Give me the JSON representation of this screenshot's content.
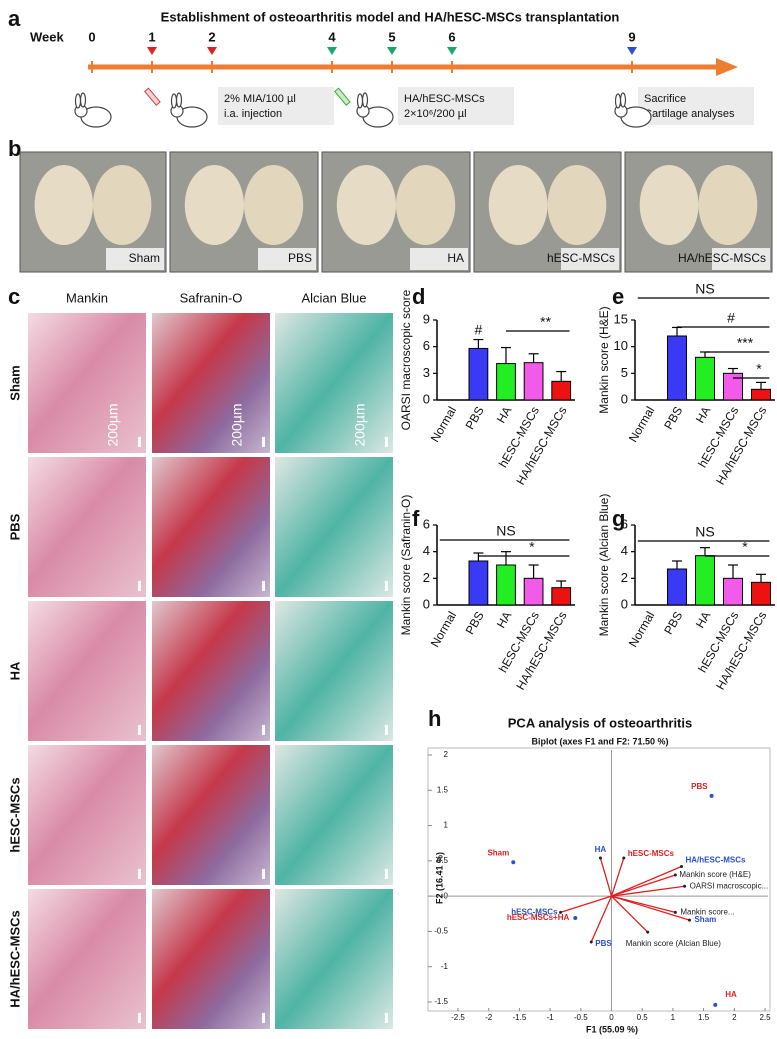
{
  "panel_labels": [
    "a",
    "b",
    "c",
    "d",
    "e",
    "f",
    "g",
    "h"
  ],
  "timeline": {
    "title": "Establishment of osteoarthritis model and HA/hESC-MSCs transplantation",
    "axis_label": "Week",
    "weeks": [
      0,
      1,
      2,
      4,
      5,
      6,
      9
    ],
    "marker_colors": [
      null,
      "#e02020",
      "#e02020",
      "#1aa86a",
      "#1aa86a",
      "#1aa86a",
      "#2a4fd0"
    ],
    "color": "#ed7d31",
    "notes": [
      {
        "week": 2,
        "lines": [
          "2% MIA/100 µl",
          "i.a. injection"
        ]
      },
      {
        "week": 5,
        "lines": [
          "HA/hESC-MSCs",
          "2×10⁶/200 µl"
        ]
      },
      {
        "week": 9,
        "lines": [
          "Sacrifice",
          "Cartilage analyses"
        ]
      }
    ]
  },
  "photos": {
    "labels": [
      "Sham",
      "PBS",
      "HA",
      "hESC-MSCs",
      "HA/hESC-MSCs"
    ]
  },
  "histology": {
    "columns": [
      "Mankin",
      "Safranin-O",
      "Alcian Blue"
    ],
    "rows": [
      "Sham",
      "PBS",
      "HA",
      "hESC-MSCs",
      "HA/hESC-MSCs"
    ],
    "scale_bar": "200µm"
  },
  "chart_data": [
    {
      "type": "bar",
      "ylabel": "OARSI macroscopic score",
      "categories": [
        "Normal",
        "PBS",
        "HA",
        "hESC-MSCs",
        "HA/hESC-MSCs"
      ],
      "values": [
        0,
        5.8,
        4.1,
        4.2,
        2.1
      ],
      "errors": [
        null,
        1.0,
        1.8,
        1.0,
        1.1
      ],
      "colors": [
        "#000000",
        "#3a3af5",
        "#22ee22",
        "#f25bea",
        "#ee1111"
      ],
      "ylim": [
        0,
        9
      ],
      "yticks": [
        0,
        3,
        6,
        9
      ],
      "annotations": [
        "#",
        "**"
      ]
    },
    {
      "type": "bar",
      "ylabel": "Mankin score (H&E)",
      "categories": [
        "Normal",
        "PBS",
        "HA",
        "hESC-MSCs",
        "HA/hESC-MSCs"
      ],
      "values": [
        0,
        12,
        8,
        5,
        2
      ],
      "errors": [
        null,
        1.6,
        1.0,
        0.9,
        1.3
      ],
      "colors": [
        "#000000",
        "#3a3af5",
        "#22ee22",
        "#f25bea",
        "#ee1111"
      ],
      "ylim": [
        0,
        15
      ],
      "yticks": [
        0,
        5,
        10,
        15
      ],
      "annotations": [
        "NS",
        "#",
        "***",
        "*"
      ]
    },
    {
      "type": "bar",
      "ylabel": "Mankin score (Safranin-O)",
      "categories": [
        "Normal",
        "PBS",
        "HA",
        "hESC-MSCs",
        "HA/hESC-MSCs"
      ],
      "values": [
        0,
        3.3,
        3.0,
        2.0,
        1.3
      ],
      "errors": [
        null,
        0.6,
        1.0,
        1.0,
        0.5
      ],
      "colors": [
        "#000000",
        "#3a3af5",
        "#22ee22",
        "#f25bea",
        "#ee1111"
      ],
      "ylim": [
        0,
        6
      ],
      "yticks": [
        0,
        2,
        4,
        6
      ],
      "annotations": [
        "NS",
        "*"
      ]
    },
    {
      "type": "bar",
      "ylabel": "Mankin score (Alcian Blue)",
      "categories": [
        "Normal",
        "PBS",
        "HA",
        "hESC-MSCs",
        "HA/hESC-MSCs"
      ],
      "values": [
        0,
        2.7,
        3.7,
        2.0,
        1.7
      ],
      "errors": [
        null,
        0.6,
        0.6,
        1.0,
        0.6
      ],
      "colors": [
        "#000000",
        "#3a3af5",
        "#22ee22",
        "#f25bea",
        "#ee1111"
      ],
      "ylim": [
        0,
        6
      ],
      "yticks": [
        0,
        2,
        4,
        6
      ],
      "annotations": [
        "NS",
        "*"
      ]
    },
    {
      "type": "scatter",
      "title": "PCA analysis of osteoarthritis",
      "subtitle": "Biplot (axes F1 and F2: 71.50 %)",
      "xlabel": "F1 (55.09 %)",
      "ylabel": "F2 (16.41 %)",
      "xlim": [
        -2.5,
        2.5
      ],
      "ylim": [
        -1.5,
        2
      ],
      "xticks": [
        -2.5,
        -2,
        -1.5,
        -1,
        -0.5,
        0,
        0.5,
        1,
        1.5,
        2,
        2.5
      ],
      "yticks": [
        -1.5,
        -1,
        -0.5,
        0,
        0.5,
        1,
        1.5,
        2
      ],
      "points": {
        "labels": [
          "PBS",
          "Sham",
          "HA",
          "hESC-MSCs+HA"
        ],
        "x": [
          1.63,
          -1.6,
          1.69,
          -0.59
        ],
        "y": [
          1.42,
          0.48,
          -1.54,
          -0.31
        ],
        "color": "#2a4fd0",
        "label_color": "#e02020"
      },
      "vectors": {
        "labels": [
          "HA",
          "hESC-MSCs",
          "HA/hESC-MSCs",
          "Mankin score (H&E)",
          "OARSI macroscopic...",
          "Mankin score...",
          "Sham",
          "Mankin score (Alcian Blue)",
          "PBS",
          "hESC-MSCs"
        ],
        "x": [
          -0.18,
          0.2,
          1.14,
          1.04,
          1.19,
          1.04,
          1.27,
          0.59,
          -0.33,
          -0.83
        ],
        "y": [
          0.54,
          0.54,
          0.42,
          0.3,
          0.14,
          -0.23,
          -0.34,
          -0.51,
          -0.65,
          -0.23
        ],
        "label_colors": [
          "#2a4fd0",
          "#e02020",
          "#2a4fd0",
          "#222222",
          "#222222",
          "#222222",
          "#2a4fd0",
          "#222222",
          "#2a4fd0",
          "#2a4fd0"
        ],
        "color": "#e02020"
      }
    }
  ]
}
